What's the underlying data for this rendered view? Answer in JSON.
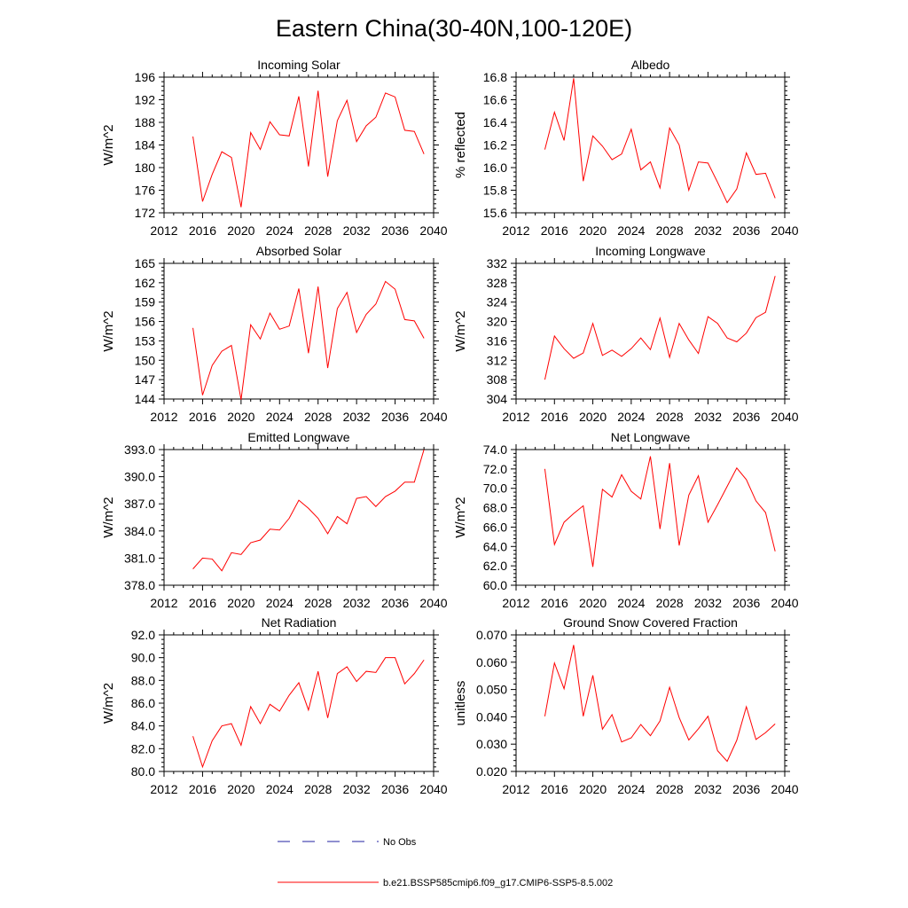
{
  "title": "Eastern China(30-40N,100-120E)",
  "colors": {
    "model": "#ff0000",
    "obs": "#2020a0",
    "axis": "#000000"
  },
  "legend": {
    "obs_label": "No Obs",
    "model_label": "b.e21.BSSP585cmip6.f09_g17.CMIP6-SSP5-8.5.002"
  },
  "chart_data": [
    {
      "type": "line",
      "title": "Incoming Solar",
      "ylabel": "W/m^2",
      "xlim": [
        2012,
        2040
      ],
      "ylim": [
        172,
        196
      ],
      "xticks": [
        2012,
        2016,
        2020,
        2024,
        2028,
        2032,
        2036,
        2040
      ],
      "yticks": [
        172,
        176,
        180,
        184,
        188,
        192,
        196
      ],
      "ytick_labels": [
        "172",
        "176",
        "180",
        "184",
        "188",
        "192",
        "196"
      ],
      "series": [
        {
          "name": "b.e21.BSSP585cmip6.f09_g17.CMIP6-SSP5-8.5.002",
          "x": [
            2015,
            2016,
            2017,
            2018,
            2019,
            2020,
            2021,
            2022,
            2023,
            2024,
            2025,
            2026,
            2027,
            2028,
            2029,
            2030,
            2031,
            2032,
            2033,
            2034,
            2035,
            2036,
            2037,
            2038,
            2039
          ],
          "y": [
            185.5,
            174.0,
            178.8,
            182.8,
            181.8,
            173.0,
            186.2,
            183.2,
            188.1,
            185.8,
            185.6,
            192.6,
            180.2,
            193.6,
            178.4,
            188.3,
            191.9,
            184.6,
            187.4,
            188.9,
            193.2,
            192.5,
            186.6,
            186.4,
            182.4
          ]
        }
      ]
    },
    {
      "type": "line",
      "title": "Albedo",
      "ylabel": "% reflected",
      "xlim": [
        2012,
        2040
      ],
      "ylim": [
        15.6,
        16.8
      ],
      "xticks": [
        2012,
        2016,
        2020,
        2024,
        2028,
        2032,
        2036,
        2040
      ],
      "yticks": [
        15.6,
        15.8,
        16.0,
        16.2,
        16.4,
        16.6,
        16.8
      ],
      "ytick_labels": [
        "15.6",
        "15.8",
        "16.0",
        "16.2",
        "16.4",
        "16.6",
        "16.8"
      ],
      "series": [
        {
          "name": "b.e21.BSSP585cmip6.f09_g17.CMIP6-SSP5-8.5.002",
          "x": [
            2015,
            2016,
            2017,
            2018,
            2019,
            2020,
            2021,
            2022,
            2023,
            2024,
            2025,
            2026,
            2027,
            2028,
            2029,
            2030,
            2031,
            2032,
            2033,
            2034,
            2035,
            2036,
            2037,
            2038,
            2039
          ],
          "y": [
            16.16,
            16.49,
            16.24,
            16.79,
            15.88,
            16.28,
            16.19,
            16.07,
            16.12,
            16.34,
            15.98,
            16.05,
            15.82,
            16.35,
            16.2,
            15.8,
            16.05,
            16.04,
            15.87,
            15.69,
            15.81,
            16.13,
            15.94,
            15.95,
            15.73
          ]
        }
      ]
    },
    {
      "type": "line",
      "title": "Absorbed Solar",
      "ylabel": "W/m^2",
      "xlim": [
        2012,
        2040
      ],
      "ylim": [
        144,
        165
      ],
      "xticks": [
        2012,
        2016,
        2020,
        2024,
        2028,
        2032,
        2036,
        2040
      ],
      "yticks": [
        144,
        147,
        150,
        153,
        156,
        159,
        162,
        165
      ],
      "ytick_labels": [
        "144",
        "147",
        "150",
        "153",
        "156",
        "159",
        "162",
        "165"
      ],
      "series": [
        {
          "name": "b.e21.BSSP585cmip6.f09_g17.CMIP6-SSP5-8.5.002",
          "x": [
            2015,
            2016,
            2017,
            2018,
            2019,
            2020,
            2021,
            2022,
            2023,
            2024,
            2025,
            2026,
            2027,
            2028,
            2029,
            2030,
            2031,
            2032,
            2033,
            2034,
            2035,
            2036,
            2037,
            2038,
            2039
          ],
          "y": [
            155.0,
            144.6,
            149.2,
            151.4,
            152.3,
            143.9,
            155.5,
            153.3,
            157.3,
            154.8,
            155.3,
            161.1,
            151.1,
            161.4,
            148.8,
            158.0,
            160.5,
            154.3,
            157.1,
            158.7,
            162.2,
            161.0,
            156.3,
            156.1,
            153.4
          ]
        }
      ]
    },
    {
      "type": "line",
      "title": "Incoming Longwave",
      "ylabel": "W/m^2",
      "xlim": [
        2012,
        2040
      ],
      "ylim": [
        304,
        332
      ],
      "xticks": [
        2012,
        2016,
        2020,
        2024,
        2028,
        2032,
        2036,
        2040
      ],
      "yticks": [
        304,
        308,
        312,
        316,
        320,
        324,
        328,
        332
      ],
      "ytick_labels": [
        "304",
        "308",
        "312",
        "316",
        "320",
        "324",
        "328",
        "332"
      ],
      "series": [
        {
          "name": "b.e21.BSSP585cmip6.f09_g17.CMIP6-SSP5-8.5.002",
          "x": [
            2015,
            2016,
            2017,
            2018,
            2019,
            2020,
            2021,
            2022,
            2023,
            2024,
            2025,
            2026,
            2027,
            2028,
            2029,
            2030,
            2031,
            2032,
            2033,
            2034,
            2035,
            2036,
            2037,
            2038,
            2039
          ],
          "y": [
            308.0,
            317.0,
            314.4,
            312.4,
            313.5,
            319.6,
            313.0,
            314.1,
            312.8,
            314.4,
            316.6,
            314.2,
            320.7,
            312.6,
            319.6,
            316.2,
            313.4,
            321.0,
            319.6,
            316.6,
            315.8,
            317.6,
            320.8,
            321.9,
            329.4
          ]
        }
      ]
    },
    {
      "type": "line",
      "title": "Emitted Longwave",
      "ylabel": "W/m^2",
      "xlim": [
        2012,
        2040
      ],
      "ylim": [
        378.0,
        393.0
      ],
      "xticks": [
        2012,
        2016,
        2020,
        2024,
        2028,
        2032,
        2036,
        2040
      ],
      "yticks": [
        378.0,
        381.0,
        384.0,
        387.0,
        390.0,
        393.0
      ],
      "ytick_labels": [
        "378.0",
        "381.0",
        "384.0",
        "387.0",
        "390.0",
        "393.0"
      ],
      "series": [
        {
          "name": "b.e21.BSSP585cmip6.f09_g17.CMIP6-SSP5-8.5.002",
          "x": [
            2015,
            2016,
            2017,
            2018,
            2019,
            2020,
            2021,
            2022,
            2023,
            2024,
            2025,
            2026,
            2027,
            2028,
            2029,
            2030,
            2031,
            2032,
            2033,
            2034,
            2035,
            2036,
            2037,
            2038,
            2039
          ],
          "y": [
            379.8,
            381.0,
            380.9,
            379.6,
            381.6,
            381.4,
            382.7,
            383.0,
            384.2,
            384.1,
            385.4,
            387.4,
            386.5,
            385.4,
            383.7,
            385.6,
            384.8,
            387.6,
            387.8,
            386.7,
            387.8,
            388.4,
            389.4,
            389.4,
            393.0
          ]
        }
      ]
    },
    {
      "type": "line",
      "title": "Net Longwave",
      "ylabel": "W/m^2",
      "xlim": [
        2012,
        2040
      ],
      "ylim": [
        60.0,
        74.0
      ],
      "xticks": [
        2012,
        2016,
        2020,
        2024,
        2028,
        2032,
        2036,
        2040
      ],
      "yticks": [
        60.0,
        62.0,
        64.0,
        66.0,
        68.0,
        70.0,
        72.0,
        74.0
      ],
      "ytick_labels": [
        "60.0",
        "62.0",
        "64.0",
        "66.0",
        "68.0",
        "70.0",
        "72.0",
        "74.0"
      ],
      "series": [
        {
          "name": "b.e21.BSSP585cmip6.f09_g17.CMIP6-SSP5-8.5.002",
          "x": [
            2015,
            2016,
            2017,
            2018,
            2019,
            2020,
            2021,
            2022,
            2023,
            2024,
            2025,
            2026,
            2027,
            2028,
            2029,
            2030,
            2031,
            2032,
            2033,
            2034,
            2035,
            2036,
            2037,
            2038,
            2039
          ],
          "y": [
            72.0,
            64.2,
            66.5,
            67.4,
            68.2,
            61.9,
            69.9,
            69.1,
            71.4,
            69.7,
            68.9,
            73.3,
            65.8,
            72.6,
            64.1,
            69.3,
            71.3,
            66.5,
            68.3,
            70.2,
            72.1,
            70.9,
            68.7,
            67.5,
            63.5
          ]
        }
      ]
    },
    {
      "type": "line",
      "title": "Net Radiation",
      "ylabel": "W/m^2",
      "xlim": [
        2012,
        2040
      ],
      "ylim": [
        80.0,
        92.0
      ],
      "xticks": [
        2012,
        2016,
        2020,
        2024,
        2028,
        2032,
        2036,
        2040
      ],
      "yticks": [
        80.0,
        82.0,
        84.0,
        86.0,
        88.0,
        90.0,
        92.0
      ],
      "ytick_labels": [
        "80.0",
        "82.0",
        "84.0",
        "86.0",
        "88.0",
        "90.0",
        "92.0"
      ],
      "series": [
        {
          "name": "b.e21.BSSP585cmip6.f09_g17.CMIP6-SSP5-8.5.002",
          "x": [
            2015,
            2016,
            2017,
            2018,
            2019,
            2020,
            2021,
            2022,
            2023,
            2024,
            2025,
            2026,
            2027,
            2028,
            2029,
            2030,
            2031,
            2032,
            2033,
            2034,
            2035,
            2036,
            2037,
            2038,
            2039
          ],
          "y": [
            83.1,
            80.4,
            82.7,
            84.0,
            84.2,
            82.3,
            85.7,
            84.2,
            85.9,
            85.3,
            86.7,
            87.8,
            85.4,
            88.8,
            84.7,
            88.6,
            89.2,
            87.9,
            88.8,
            88.7,
            90.0,
            90.0,
            87.7,
            88.6,
            89.8
          ]
        }
      ]
    },
    {
      "type": "line",
      "title": "Ground Snow Covered Fraction",
      "ylabel": "unitless",
      "xlim": [
        2012,
        2040
      ],
      "ylim": [
        0.02,
        0.07
      ],
      "xticks": [
        2012,
        2016,
        2020,
        2024,
        2028,
        2032,
        2036,
        2040
      ],
      "yticks": [
        0.02,
        0.03,
        0.04,
        0.05,
        0.06,
        0.07
      ],
      "ytick_labels": [
        "0.020",
        "0.030",
        "0.040",
        "0.050",
        "0.060",
        "0.070"
      ],
      "series": [
        {
          "name": "b.e21.BSSP585cmip6.f09_g17.CMIP6-SSP5-8.5.002",
          "x": [
            2015,
            2016,
            2017,
            2018,
            2019,
            2020,
            2021,
            2022,
            2023,
            2024,
            2025,
            2026,
            2027,
            2028,
            2029,
            2030,
            2031,
            2032,
            2033,
            2034,
            2035,
            2036,
            2037,
            2038,
            2039
          ],
          "y": [
            0.0402,
            0.0597,
            0.0503,
            0.0663,
            0.0402,
            0.0552,
            0.0355,
            0.0408,
            0.0308,
            0.0323,
            0.0372,
            0.0331,
            0.0385,
            0.0508,
            0.0397,
            0.0315,
            0.0356,
            0.0402,
            0.0276,
            0.0237,
            0.0314,
            0.0437,
            0.0317,
            0.0342,
            0.0374
          ]
        }
      ]
    }
  ]
}
